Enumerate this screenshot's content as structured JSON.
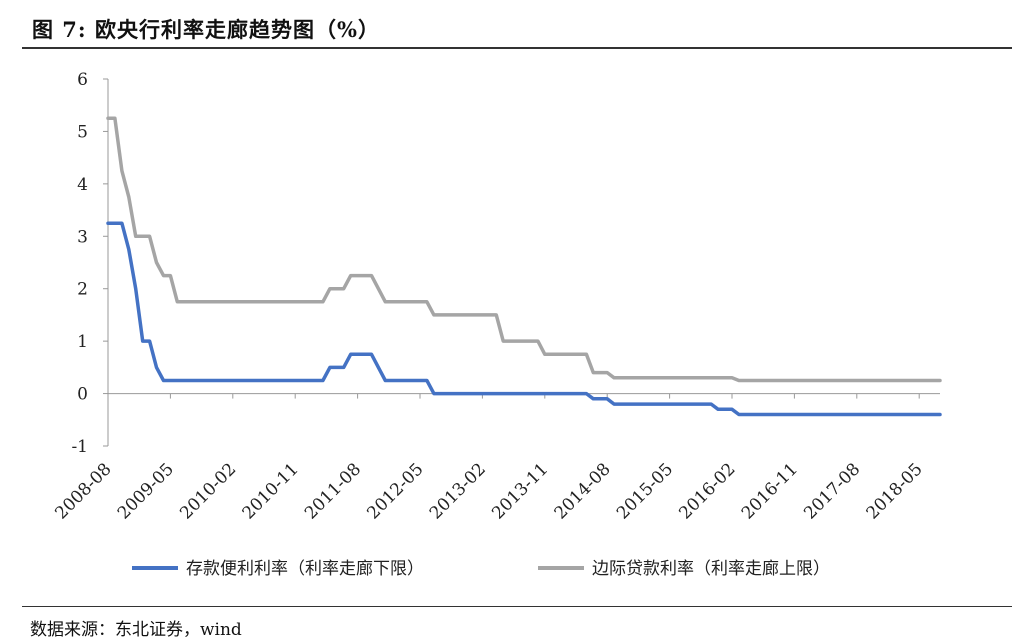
{
  "header": {
    "title": "图 7: 欧央行利率走廊趋势图（%）"
  },
  "footer": {
    "source": "数据来源：东北证券，wind"
  },
  "colors": {
    "deposit": "#4472C4",
    "lending": "#A5A5A5",
    "axis": "#999999"
  },
  "chart_data": {
    "type": "line",
    "title": "欧央行利率走廊趋势图（%）",
    "xlabel": "",
    "ylabel": "",
    "ylim": [
      -1,
      6
    ],
    "yticks": [
      -1,
      0,
      1,
      2,
      3,
      4,
      5,
      6
    ],
    "xlim": [
      "2008-08",
      "2018-08"
    ],
    "xticks": [
      "2008-08",
      "2009-05",
      "2010-02",
      "2010-11",
      "2011-08",
      "2012-05",
      "2013-02",
      "2013-11",
      "2014-08",
      "2015-05",
      "2016-02",
      "2016-11",
      "2017-08",
      "2018-05"
    ],
    "grid": false,
    "legend": "bottom",
    "series": [
      {
        "name": "存款便利利率（利率走廊下限）",
        "points": [
          [
            "2008-08",
            3.25
          ],
          [
            "2008-10",
            3.25
          ],
          [
            "2008-11",
            2.75
          ],
          [
            "2008-12",
            2.0
          ],
          [
            "2009-01",
            1.0
          ],
          [
            "2009-02",
            1.0
          ],
          [
            "2009-03",
            0.5
          ],
          [
            "2009-04",
            0.25
          ],
          [
            "2011-03",
            0.25
          ],
          [
            "2011-04",
            0.5
          ],
          [
            "2011-06",
            0.5
          ],
          [
            "2011-07",
            0.75
          ],
          [
            "2011-10",
            0.75
          ],
          [
            "2011-11",
            0.5
          ],
          [
            "2011-12",
            0.25
          ],
          [
            "2012-06",
            0.25
          ],
          [
            "2012-07",
            0.0
          ],
          [
            "2014-05",
            0.0
          ],
          [
            "2014-06",
            -0.1
          ],
          [
            "2014-08",
            -0.1
          ],
          [
            "2014-09",
            -0.2
          ],
          [
            "2015-11",
            -0.2
          ],
          [
            "2015-12",
            -0.3
          ],
          [
            "2016-02",
            -0.3
          ],
          [
            "2016-03",
            -0.4
          ],
          [
            "2018-08",
            -0.4
          ]
        ]
      },
      {
        "name": "边际贷款利率（利率走廊上限）",
        "points": [
          [
            "2008-08",
            5.25
          ],
          [
            "2008-09",
            5.25
          ],
          [
            "2008-10",
            4.25
          ],
          [
            "2008-11",
            3.75
          ],
          [
            "2008-12",
            3.0
          ],
          [
            "2009-02",
            3.0
          ],
          [
            "2009-03",
            2.5
          ],
          [
            "2009-04",
            2.25
          ],
          [
            "2009-05",
            2.25
          ],
          [
            "2009-06",
            1.75
          ],
          [
            "2011-03",
            1.75
          ],
          [
            "2011-04",
            2.0
          ],
          [
            "2011-06",
            2.0
          ],
          [
            "2011-07",
            2.25
          ],
          [
            "2011-10",
            2.25
          ],
          [
            "2011-11",
            2.0
          ],
          [
            "2011-12",
            1.75
          ],
          [
            "2012-06",
            1.75
          ],
          [
            "2012-07",
            1.5
          ],
          [
            "2013-04",
            1.5
          ],
          [
            "2013-05",
            1.0
          ],
          [
            "2013-10",
            1.0
          ],
          [
            "2013-11",
            0.75
          ],
          [
            "2014-05",
            0.75
          ],
          [
            "2014-06",
            0.4
          ],
          [
            "2014-08",
            0.4
          ],
          [
            "2014-09",
            0.3
          ],
          [
            "2016-02",
            0.3
          ],
          [
            "2016-03",
            0.25
          ],
          [
            "2018-08",
            0.25
          ]
        ]
      }
    ]
  }
}
